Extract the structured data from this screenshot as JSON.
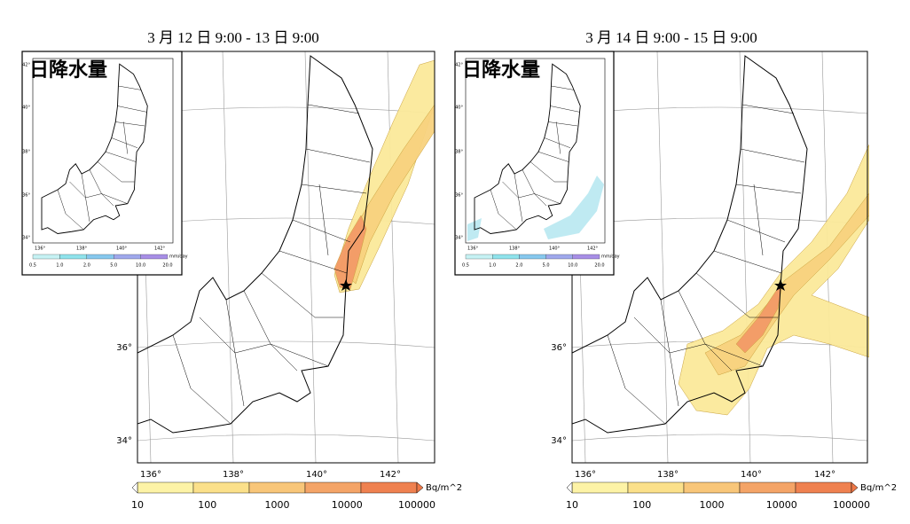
{
  "panels": [
    {
      "title": "3 月 12 日 9:00 - 13 日 9:00",
      "inset": {
        "label": "日降水量",
        "lat_labels": [
          "42°",
          "40°",
          "38°",
          "36°",
          "34°"
        ],
        "lon_labels": [
          "136°",
          "138°",
          "140°",
          "142°"
        ],
        "colorbar_labels": [
          "0.5",
          "1.0",
          "2.0",
          "5.0",
          "10.0",
          "20.0"
        ],
        "colorbar_unit": "mm/day"
      },
      "lat_labels": [
        "36°",
        "34°"
      ],
      "lon_labels": [
        "136°",
        "138°",
        "140°",
        "142°"
      ],
      "colorbar_labels": [
        "10",
        "100",
        "1000",
        "10000",
        "100000"
      ],
      "colorbar_unit": "Bq/m^2"
    },
    {
      "title": "3 月 14 日 9:00 - 15 日 9:00",
      "inset": {
        "label": "日降水量",
        "lat_labels": [
          "42°",
          "40°",
          "38°",
          "36°",
          "34°"
        ],
        "lon_labels": [
          "136°",
          "138°",
          "140°",
          "142°"
        ],
        "colorbar_labels": [
          "0.5",
          "1.0",
          "2.0",
          "5.0",
          "10.0",
          "20.0"
        ],
        "colorbar_unit": "mm/day"
      },
      "lat_labels": [
        "36°",
        "34°"
      ],
      "lon_labels": [
        "136°",
        "138°",
        "140°",
        "142°"
      ],
      "colorbar_labels": [
        "10",
        "100",
        "1000",
        "10000",
        "100000"
      ],
      "colorbar_unit": "Bq/m^2"
    }
  ]
}
